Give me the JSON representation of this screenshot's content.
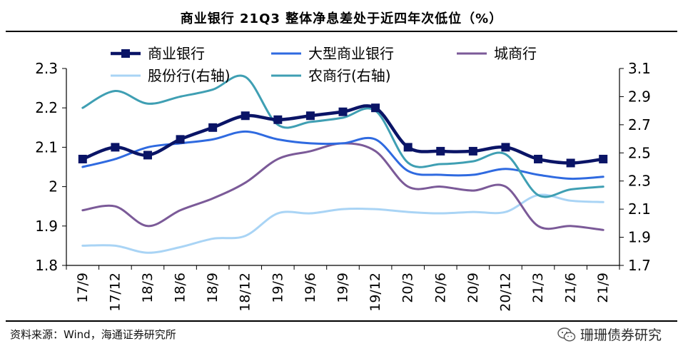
{
  "title": "商业银行 21Q3 整体净息差处于近四年次低位（%）",
  "source": "资料来源：Wind，海通证券研究所",
  "watermark": "珊珊债券研究",
  "colors": {
    "commercial": "#0a1466",
    "large": "#2f6ae0",
    "city": "#7b5a98",
    "joint": "#a9d4f5",
    "rural": "#3f9fb3",
    "axis": "#000000"
  },
  "chart_data": {
    "type": "line",
    "categories": [
      "17/9",
      "17/12",
      "18/3",
      "18/6",
      "18/9",
      "18/12",
      "19/3",
      "19/6",
      "19/9",
      "19/12",
      "20/3",
      "20/6",
      "20/9",
      "20/12",
      "21/3",
      "21/6",
      "21/9"
    ],
    "left_axis": {
      "min": 1.8,
      "max": 2.3,
      "ticks": [
        1.8,
        1.9,
        2.0,
        2.1,
        2.2,
        2.3
      ],
      "tick_labels": [
        "1.8",
        "1.9",
        "2",
        "2.1",
        "2.2",
        "2.3"
      ]
    },
    "right_axis": {
      "min": 1.7,
      "max": 3.1,
      "ticks": [
        1.7,
        1.9,
        2.1,
        2.3,
        2.5,
        2.7,
        2.9,
        3.1
      ],
      "tick_labels": [
        "1.7",
        "1.9",
        "2.1",
        "2.3",
        "2.5",
        "2.7",
        "2.9",
        "3.1"
      ]
    },
    "series": [
      {
        "key": "commercial",
        "name": "商业银行",
        "axis": "left",
        "markers": true,
        "values": [
          2.07,
          2.1,
          2.08,
          2.12,
          2.15,
          2.18,
          2.17,
          2.18,
          2.19,
          2.2,
          2.1,
          2.09,
          2.09,
          2.1,
          2.07,
          2.06,
          2.07
        ]
      },
      {
        "key": "large",
        "name": "大型商业银行",
        "axis": "left",
        "values": [
          2.05,
          2.07,
          2.1,
          2.11,
          2.12,
          2.14,
          2.12,
          2.11,
          2.11,
          2.12,
          2.04,
          2.03,
          2.03,
          2.045,
          2.03,
          2.02,
          2.025
        ]
      },
      {
        "key": "city",
        "name": "城商行",
        "axis": "left",
        "values": [
          1.94,
          1.95,
          1.9,
          1.94,
          1.97,
          2.01,
          2.07,
          2.09,
          2.11,
          2.09,
          2.0,
          2.0,
          1.99,
          2.0,
          1.9,
          1.9,
          1.89
        ]
      },
      {
        "key": "joint",
        "name": "股份行(右轴)",
        "axis": "right",
        "values": [
          1.84,
          1.84,
          1.79,
          1.83,
          1.89,
          1.91,
          2.07,
          2.07,
          2.1,
          2.1,
          2.08,
          2.07,
          2.08,
          2.08,
          2.2,
          2.16,
          2.15
        ]
      },
      {
        "key": "rural",
        "name": "农商行(右轴)",
        "axis": "right",
        "values": [
          2.82,
          2.94,
          2.85,
          2.9,
          2.95,
          3.04,
          2.7,
          2.72,
          2.75,
          2.8,
          2.43,
          2.42,
          2.44,
          2.49,
          2.2,
          2.24,
          2.26
        ]
      }
    ],
    "legend_rows": [
      [
        "commercial",
        "large",
        "city"
      ],
      [
        "joint",
        "rural"
      ]
    ]
  }
}
